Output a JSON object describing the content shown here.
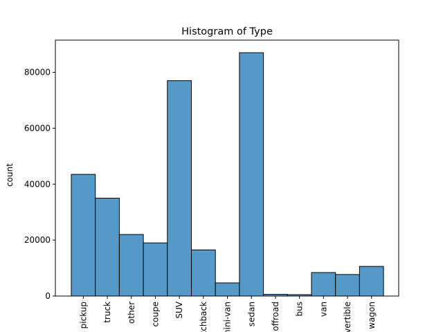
{
  "chart_data": {
    "type": "bar",
    "title": "Histogram of Type",
    "xlabel": "",
    "ylabel": "count",
    "categories": [
      "pickup",
      "truck",
      "other",
      "coupe",
      "SUV",
      "hatchback",
      "mini-van",
      "sedan",
      "offroad",
      "bus",
      "van",
      "convertible",
      "wagon"
    ],
    "values": [
      43500,
      35000,
      22000,
      19000,
      77000,
      16500,
      4700,
      87000,
      600,
      500,
      8400,
      7700,
      10600
    ],
    "ylim": [
      0,
      91500
    ],
    "yticks": [
      0,
      20000,
      40000,
      60000,
      80000
    ],
    "bar_color": "#5599c8",
    "edge_color": "#000000",
    "grid": false,
    "legend": "none"
  }
}
